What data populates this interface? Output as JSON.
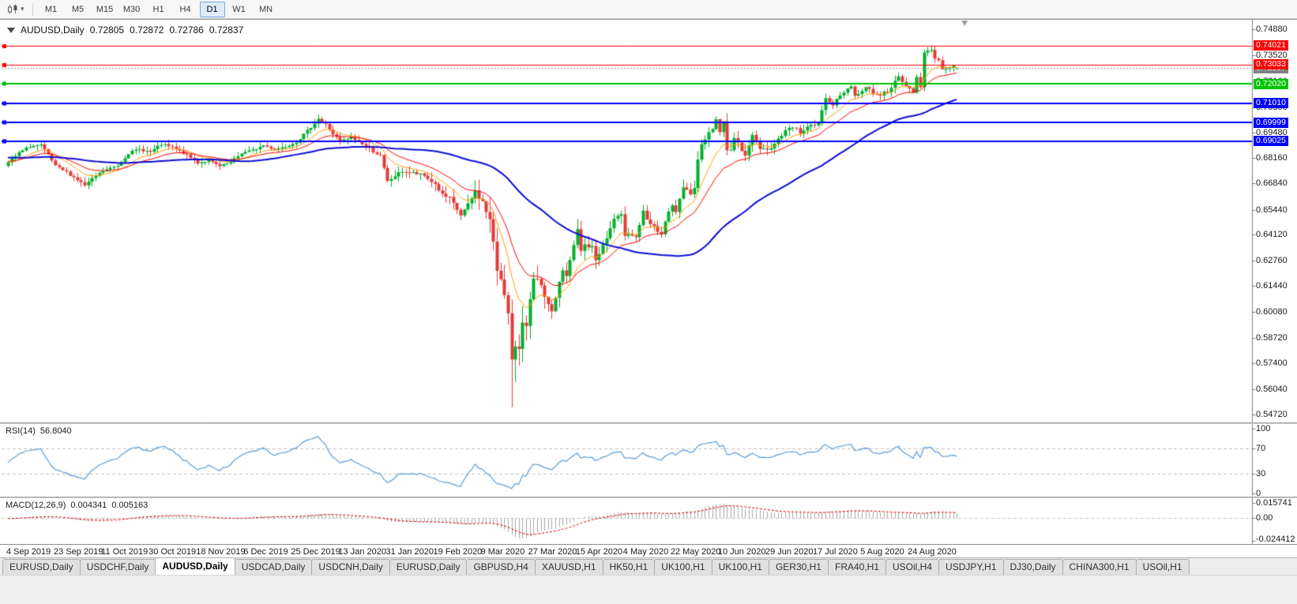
{
  "toolbar": {
    "dropdown_caret": "▾",
    "timeframes": [
      "M1",
      "M5",
      "M15",
      "M30",
      "H1",
      "H4",
      "D1",
      "W1",
      "MN"
    ],
    "active_timeframe": "D1"
  },
  "chart": {
    "title": "AUDUSD,Daily",
    "ohlc": {
      "open": "0.72805",
      "high": "0.72872",
      "low": "0.72786",
      "close": "0.72837"
    }
  },
  "price_axis": {
    "grid_labels": [
      "0.74880",
      "0.73520",
      "0.72160",
      "0.70800",
      "0.69480",
      "0.68160",
      "0.66840",
      "0.65440",
      "0.64120",
      "0.62760",
      "0.61440",
      "0.60080",
      "0.58720",
      "0.57400",
      "0.56040",
      "0.54720"
    ]
  },
  "indicators": {
    "rsi": {
      "label": "RSI(14)",
      "value": "56.8040",
      "axis_labels": [
        "100",
        "70",
        "30",
        "0"
      ]
    },
    "macd": {
      "label": "MACD(12,26,9)",
      "value_macd": "0.004341",
      "value_signal": "0.005163",
      "axis_labels": [
        "0.015741",
        "0.00",
        "-0.024412"
      ]
    }
  },
  "date_axis": {
    "labels": [
      "4 Sep 2019",
      "23 Sep 2019",
      "11 Oct 2019",
      "30 Oct 2019",
      "18 Nov 2019",
      "6 Dec 2019",
      "25 Dec 2019",
      "13 Jan 2020",
      "31 Jan 2020",
      "19 Feb 2020",
      "9 Mar 2020",
      "27 Mar 2020",
      "15 Apr 2020",
      "4 May 2020",
      "22 May 2020",
      "10 Jun 2020",
      "29 Jun 2020",
      "17 Jul 2020",
      "5 Aug 2020",
      "24 Aug 2020"
    ]
  },
  "tabs": {
    "items": [
      {
        "label": "EURUSD,Daily",
        "active": false
      },
      {
        "label": "USDCHF,Daily",
        "active": false
      },
      {
        "label": "AUDUSD,Daily",
        "active": true
      },
      {
        "label": "USDCAD,Daily",
        "active": false
      },
      {
        "label": "USDCNH,Daily",
        "active": false
      },
      {
        "label": "EURUSD,Daily",
        "active": false
      },
      {
        "label": "GBPUSD,H4",
        "active": false
      },
      {
        "label": "XAUUSD,H1",
        "active": false
      },
      {
        "label": "HK50,H1",
        "active": false
      },
      {
        "label": "UK100,H1",
        "active": false
      },
      {
        "label": "UK100,H1",
        "active": false
      },
      {
        "label": "GER30,H1",
        "active": false
      },
      {
        "label": "FRA40,H1",
        "active": false
      },
      {
        "label": "USOil,H4",
        "active": false
      },
      {
        "label": "USDJPY,H1",
        "active": false
      },
      {
        "label": "DJ30,Daily",
        "active": false
      },
      {
        "label": "CHINA300,H1",
        "active": false
      },
      {
        "label": "USOil,H1",
        "active": false
      }
    ]
  },
  "chart_data": {
    "type": "candlestick",
    "symbol": "AUDUSD",
    "period": "Daily",
    "price_range_visible": {
      "top": 0.7488,
      "bottom": 0.5472
    },
    "candle_count": 261,
    "candle_colors": {
      "up": "#00b02c",
      "down": "#e43a36"
    },
    "close_path_anchors": [
      [
        0,
        0.679
      ],
      [
        3,
        0.684
      ],
      [
        6,
        0.6875
      ],
      [
        9,
        0.688
      ],
      [
        11,
        0.683
      ],
      [
        13,
        0.677
      ],
      [
        16,
        0.674
      ],
      [
        19,
        0.67
      ],
      [
        21,
        0.667
      ],
      [
        24,
        0.672
      ],
      [
        26,
        0.6745
      ],
      [
        30,
        0.6775
      ],
      [
        33,
        0.684
      ],
      [
        36,
        0.686
      ],
      [
        39,
        0.6845
      ],
      [
        42,
        0.6885
      ],
      [
        45,
        0.687
      ],
      [
        48,
        0.684
      ],
      [
        52,
        0.679
      ],
      [
        55,
        0.68
      ],
      [
        58,
        0.677
      ],
      [
        61,
        0.679
      ],
      [
        64,
        0.684
      ],
      [
        67,
        0.6855
      ],
      [
        70,
        0.688
      ],
      [
        73,
        0.686
      ],
      [
        76,
        0.6875
      ],
      [
        79,
        0.69
      ],
      [
        82,
        0.6955
      ],
      [
        85,
        0.702
      ],
      [
        87,
        0.699
      ],
      [
        89,
        0.694
      ],
      [
        91,
        0.69
      ],
      [
        94,
        0.692
      ],
      [
        97,
        0.689
      ],
      [
        100,
        0.685
      ],
      [
        102,
        0.6825
      ],
      [
        104,
        0.669
      ],
      [
        106,
        0.672
      ],
      [
        108,
        0.6745
      ],
      [
        111,
        0.6735
      ],
      [
        114,
        0.672
      ],
      [
        117,
        0.6677
      ],
      [
        119,
        0.662
      ],
      [
        121,
        0.66
      ],
      [
        124,
        0.6515
      ],
      [
        126,
        0.6565
      ],
      [
        128,
        0.664
      ],
      [
        130,
        0.6581
      ],
      [
        132,
        0.649
      ],
      [
        134,
        0.623
      ],
      [
        135,
        0.619
      ],
      [
        136,
        0.612
      ],
      [
        137,
        0.599
      ],
      [
        138,
        0.5745
      ],
      [
        139,
        0.58
      ],
      [
        140,
        0.5825
      ],
      [
        141,
        0.5965
      ],
      [
        142,
        0.5955
      ],
      [
        143,
        0.6065
      ],
      [
        144,
        0.6165
      ],
      [
        145,
        0.617
      ],
      [
        146,
        0.6135
      ],
      [
        147,
        0.607
      ],
      [
        148,
        0.606
      ],
      [
        149,
        0.5995
      ],
      [
        150,
        0.609
      ],
      [
        151,
        0.6165
      ],
      [
        152,
        0.623
      ],
      [
        153,
        0.619
      ],
      [
        155,
        0.6355
      ],
      [
        156,
        0.6435
      ],
      [
        157,
        0.6325
      ],
      [
        158,
        0.636
      ],
      [
        160,
        0.6345
      ],
      [
        161,
        0.628
      ],
      [
        162,
        0.632
      ],
      [
        164,
        0.6395
      ],
      [
        166,
        0.6495
      ],
      [
        168,
        0.651
      ],
      [
        169,
        0.6415
      ],
      [
        170,
        0.6425
      ],
      [
        172,
        0.64
      ],
      [
        174,
        0.653
      ],
      [
        175,
        0.6485
      ],
      [
        177,
        0.645
      ],
      [
        179,
        0.6415
      ],
      [
        181,
        0.653
      ],
      [
        182,
        0.656
      ],
      [
        183,
        0.6535
      ],
      [
        185,
        0.665
      ],
      [
        187,
        0.6635
      ],
      [
        188,
        0.6665
      ],
      [
        189,
        0.68
      ],
      [
        190,
        0.6895
      ],
      [
        191,
        0.692
      ],
      [
        192,
        0.694
      ],
      [
        193,
        0.697
      ],
      [
        194,
        0.7015
      ],
      [
        195,
        0.6955
      ],
      [
        196,
        0.7
      ],
      [
        197,
        0.685
      ],
      [
        198,
        0.6865
      ],
      [
        199,
        0.692
      ],
      [
        200,
        0.6885
      ],
      [
        202,
        0.6835
      ],
      [
        204,
        0.693
      ],
      [
        206,
        0.6865
      ],
      [
        209,
        0.6865
      ],
      [
        211,
        0.6915
      ],
      [
        214,
        0.6975
      ],
      [
        216,
        0.6965
      ],
      [
        217,
        0.695
      ],
      [
        219,
        0.6975
      ],
      [
        222,
        0.6995
      ],
      [
        224,
        0.713
      ],
      [
        226,
        0.7095
      ],
      [
        229,
        0.716
      ],
      [
        231,
        0.7195
      ],
      [
        232,
        0.714
      ],
      [
        234,
        0.716
      ],
      [
        235,
        0.719
      ],
      [
        237,
        0.7155
      ],
      [
        239,
        0.7145
      ],
      [
        241,
        0.7165
      ],
      [
        244,
        0.7235
      ],
      [
        246,
        0.719
      ],
      [
        248,
        0.716
      ],
      [
        249,
        0.7238
      ],
      [
        250,
        0.719
      ],
      [
        251,
        0.7365
      ],
      [
        252,
        0.7373
      ],
      [
        253,
        0.7375
      ],
      [
        254,
        0.734
      ],
      [
        255,
        0.7325
      ],
      [
        256,
        0.728
      ],
      [
        257,
        0.7285
      ],
      [
        258,
        0.728
      ],
      [
        259,
        0.73
      ],
      [
        260,
        0.72837
      ]
    ],
    "volatility_anchors": [
      [
        0,
        0.005
      ],
      [
        80,
        0.005
      ],
      [
        100,
        0.006
      ],
      [
        120,
        0.008
      ],
      [
        130,
        0.013
      ],
      [
        134,
        0.02
      ],
      [
        138,
        0.026
      ],
      [
        142,
        0.018
      ],
      [
        150,
        0.014
      ],
      [
        160,
        0.01
      ],
      [
        175,
        0.008
      ],
      [
        188,
        0.009
      ],
      [
        196,
        0.009
      ],
      [
        205,
        0.007
      ],
      [
        220,
        0.006
      ],
      [
        240,
        0.006
      ],
      [
        260,
        0.005
      ]
    ],
    "extreme_low": {
      "index": 138,
      "price": 0.551
    },
    "swing_high": {
      "index": 253,
      "price": 0.7403
    },
    "last_candle": {
      "open": 0.72805,
      "high": 0.72872,
      "low": 0.72786,
      "close": 0.72837
    },
    "horizontal_lines": [
      {
        "value": 0.74021,
        "color": "#ff0000",
        "width": 1,
        "label": "0.74021"
      },
      {
        "value": 0.73033,
        "color": "#ff0000",
        "width": 1,
        "label": "0.73033"
      },
      {
        "value": 0.7202,
        "color": "#00c400",
        "width": 2,
        "label": "0.72020"
      },
      {
        "value": 0.7101,
        "color": "#0000ff",
        "width": 2,
        "label": "0.71010"
      },
      {
        "value": 0.69999,
        "color": "#0000ff",
        "width": 2,
        "label": "0.69999"
      },
      {
        "value": 0.69025,
        "color": "#0000ff",
        "width": 2,
        "label": "0.69025"
      }
    ],
    "bid_line": {
      "value": 0.72837,
      "color": "#808080",
      "label": "0.72837"
    },
    "moving_averages": [
      {
        "type": "ema",
        "period": 10,
        "color": "#ff9e00",
        "width": 1
      },
      {
        "type": "ema",
        "period": 20,
        "color": "#ff0000",
        "width": 1
      },
      {
        "type": "sma",
        "period": 55,
        "color": "#0d0dd6",
        "width": 2
      }
    ],
    "rsi": {
      "period": 14,
      "current": 56.804,
      "levels": [
        70,
        30
      ],
      "axis": [
        100,
        70,
        30,
        0
      ],
      "color": "#5b9bd5"
    },
    "macd": {
      "fast": 12,
      "slow": 26,
      "signal": 9,
      "current_macd": 0.004341,
      "current_signal": 0.005163,
      "axis_max": 0.015741,
      "axis_min": -0.024412,
      "histogram_color": "#a8a8a8",
      "signal_color": "#dd0000"
    }
  }
}
